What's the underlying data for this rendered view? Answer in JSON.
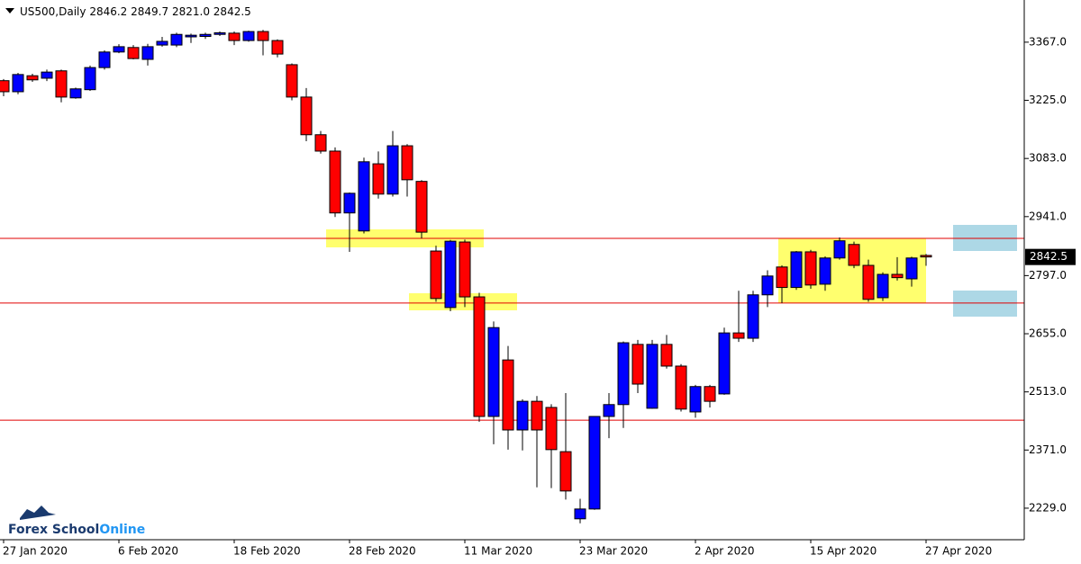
{
  "chart_data": {
    "type": "candlestick",
    "title": "US500,Daily",
    "quote_labels": [
      "2846.2",
      "2849.7",
      "2821.0",
      "2842.5"
    ],
    "watermark": [
      "Forex School",
      "Online"
    ],
    "categories": [
      "27 Jan 2020",
      null,
      null,
      null,
      null,
      null,
      null,
      null,
      "6 Feb 2020",
      null,
      null,
      null,
      null,
      null,
      null,
      null,
      "18 Feb 2020",
      null,
      null,
      null,
      null,
      null,
      null,
      null,
      "28 Feb 2020",
      null,
      null,
      null,
      null,
      null,
      null,
      null,
      "11 Mar 2020",
      null,
      null,
      null,
      null,
      null,
      null,
      null,
      "23 Mar 2020",
      null,
      null,
      null,
      null,
      null,
      null,
      null,
      "2 Apr 2020",
      null,
      null,
      null,
      null,
      null,
      null,
      null,
      "15 Apr 2020",
      null,
      null,
      null,
      null,
      null,
      null,
      null,
      "27 Apr 2020"
    ],
    "open": [
      3273,
      3246,
      3285,
      3279,
      3297,
      3231,
      3251,
      3305,
      3343,
      3354,
      3325,
      3360,
      3360,
      3380,
      3381,
      3386,
      3389,
      3371,
      3393,
      3371,
      3312,
      3233,
      3141,
      3101,
      2950,
      2906,
      3070,
      2996,
      3114,
      3027,
      2857,
      2719,
      2879,
      2745,
      2453,
      2591,
      2420,
      2490,
      2475,
      2367,
      2203,
      2227,
      2453,
      2482,
      2629,
      2473,
      2629,
      2576,
      2464,
      2526,
      2508,
      2657,
      2644,
      2750,
      2818,
      2768,
      2855,
      2776,
      2840,
      2873,
      2822,
      2743,
      2800,
      2789,
      2846.2
    ],
    "high": [
      3277,
      3292,
      3290,
      3300,
      3300,
      3256,
      3310,
      3347,
      3362,
      3360,
      3363,
      3380,
      3390,
      3388,
      3390,
      3393,
      3393,
      3395,
      3397,
      3374,
      3315,
      3255,
      3150,
      3110,
      3000,
      3085,
      3100,
      3150,
      3118,
      3030,
      2870,
      2884,
      2885,
      2755,
      2685,
      2625,
      2495,
      2503,
      2483,
      2510,
      2252,
      2453,
      2510,
      2636,
      2640,
      2640,
      2652,
      2581,
      2530,
      2530,
      2670,
      2760,
      2760,
      2810,
      2822,
      2857,
      2860,
      2844,
      2890,
      2880,
      2836,
      2805,
      2842,
      2843,
      2849.7
    ],
    "low": [
      3235,
      3240,
      3270,
      3272,
      3220,
      3229,
      3248,
      3300,
      3340,
      3325,
      3310,
      3356,
      3355,
      3365,
      3375,
      3382,
      3360,
      3368,
      3335,
      3330,
      3225,
      3125,
      3095,
      2940,
      2855,
      2900,
      2985,
      2990,
      2990,
      2888,
      2733,
      2710,
      2720,
      2440,
      2385,
      2372,
      2370,
      2280,
      2278,
      2250,
      2192,
      2225,
      2400,
      2425,
      2510,
      2472,
      2570,
      2465,
      2450,
      2475,
      2506,
      2635,
      2635,
      2720,
      2730,
      2762,
      2765,
      2760,
      2836,
      2815,
      2733,
      2735,
      2785,
      2770,
      2821
    ],
    "close": [
      3246,
      3288,
      3275,
      3294,
      3233,
      3253,
      3305,
      3343,
      3356,
      3327,
      3356,
      3369,
      3386,
      3384,
      3386,
      3390,
      3371,
      3393,
      3371,
      3338,
      3233,
      3141,
      3101,
      2950,
      2998,
      3075,
      2996,
      3114,
      3031,
      2903,
      2741,
      2881,
      2745,
      2453,
      2670,
      2420,
      2490,
      2420,
      2372,
      2271,
      2227,
      2453,
      2482,
      2633,
      2532,
      2629,
      2576,
      2471,
      2526,
      2490,
      2657,
      2644,
      2750,
      2796,
      2768,
      2855,
      2774,
      2840,
      2882,
      2822,
      2739,
      2800,
      2792,
      2840,
      2842.5
    ],
    "up_color": "#0000ff",
    "down_color": "#ff0000",
    "level_color": "#e00000",
    "levels": [
      2888,
      2730,
      2444
    ],
    "ylim": [
      2152,
      3470
    ],
    "yticks": [
      {
        "value": 3367,
        "label": "3367.0"
      },
      {
        "value": 3225,
        "label": "3225.0"
      },
      {
        "value": 3083,
        "label": "3083.0"
      },
      {
        "value": 2941,
        "label": "2941.0"
      },
      {
        "value": 2797,
        "label": "2797.0"
      },
      {
        "value": 2655,
        "label": "2655.0"
      },
      {
        "value": 2513,
        "label": "2513.0"
      },
      {
        "value": 2371,
        "label": "2371.0"
      },
      {
        "value": 2229,
        "label": "2229.0"
      }
    ]
  }
}
